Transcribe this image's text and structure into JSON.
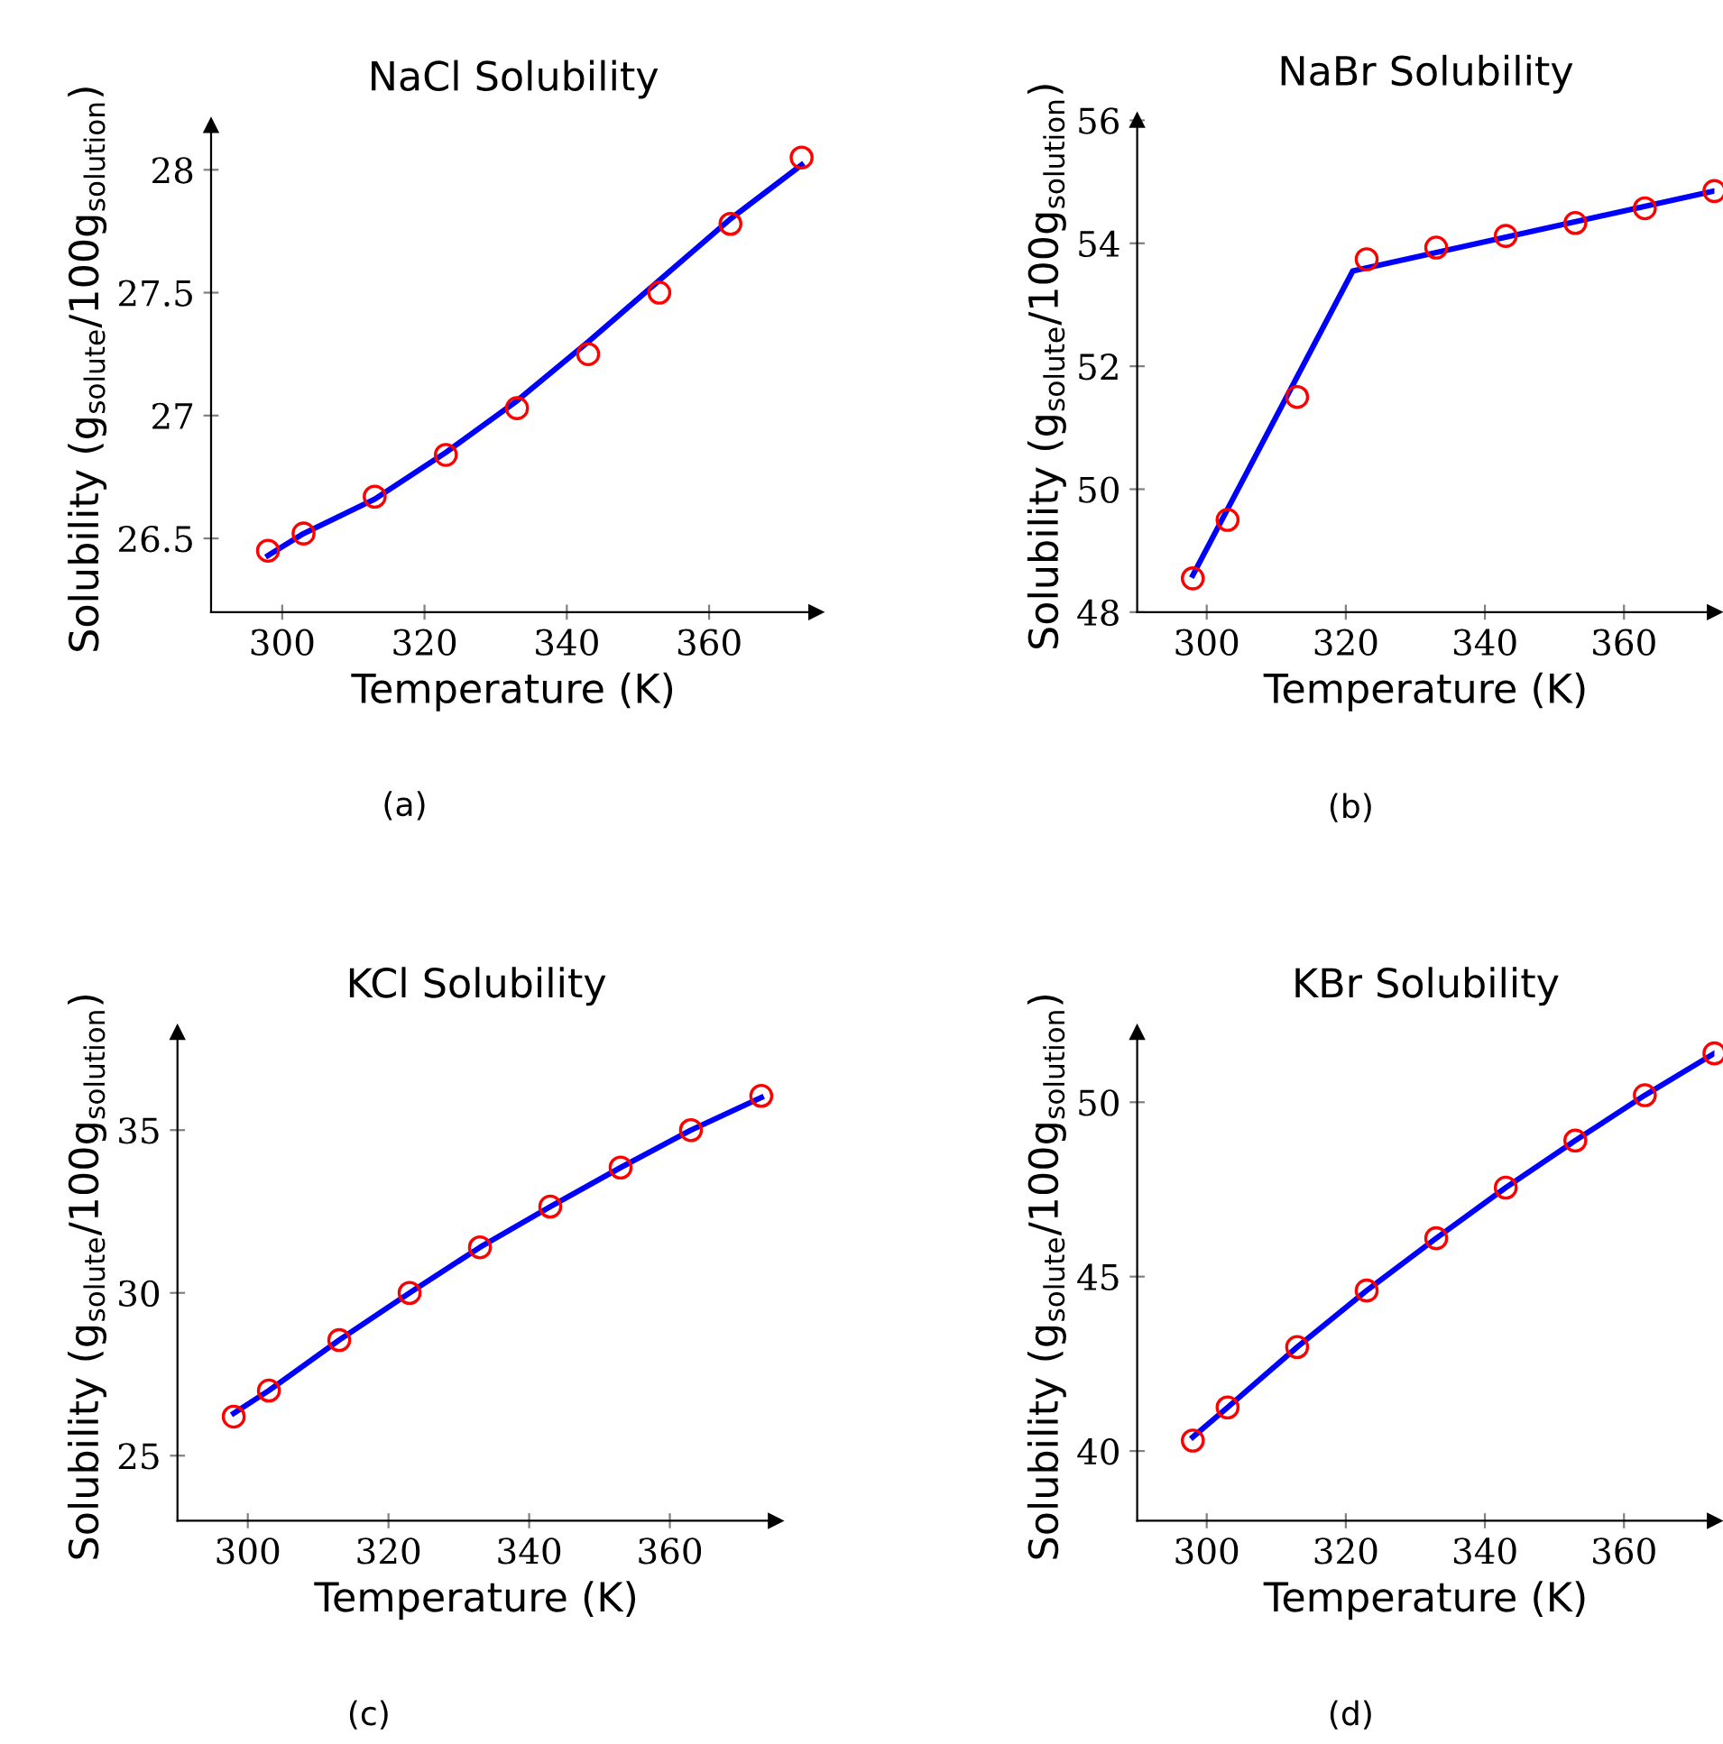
{
  "chart_data": [
    {
      "type": "line",
      "title": "NaCl Solubility",
      "xlabel": "Temperature (K)",
      "ylabel": "Solubility (g$_{solute}$/100g$_{solution}$)",
      "annotations": [
        "(a)"
      ],
      "xlim": [
        290,
        375
      ],
      "ylim": [
        26.2,
        28.18
      ],
      "xticks": [
        300,
        320,
        340,
        360
      ],
      "yticks": [
        26.5,
        27,
        27.5,
        28
      ],
      "series": [
        {
          "type": "scatter",
          "marker": "circle",
          "color": "#ff0000",
          "x": [
            298,
            303,
            313,
            323,
            333,
            343,
            353,
            363,
            373
          ],
          "values": [
            26.45,
            26.52,
            26.67,
            26.84,
            27.03,
            27.25,
            27.5,
            27.78,
            28.05
          ]
        },
        {
          "color": "#0000ff",
          "x": [
            298,
            303,
            313,
            323,
            333,
            343,
            353,
            363,
            373
          ],
          "values": [
            26.43,
            26.52,
            26.66,
            26.85,
            27.06,
            27.3,
            27.55,
            27.8,
            28.02
          ]
        }
      ]
    },
    {
      "type": "line",
      "title": "NaBr Solubility",
      "xlabel": "Temperature (K)",
      "ylabel": "Solubility (g$_{solute}$/100g$_{solution}$)",
      "annotations": [
        "(b)"
      ],
      "xlim": [
        290,
        373
      ],
      "ylim": [
        48,
        56
      ],
      "xticks": [
        300,
        320,
        340,
        360
      ],
      "yticks": [
        48,
        50,
        52,
        54,
        56
      ],
      "series": [
        {
          "type": "scatter",
          "marker": "circle",
          "color": "#ff0000",
          "x": [
            298,
            303,
            313,
            323,
            333,
            343,
            353,
            363,
            373
          ],
          "values": [
            48.55,
            49.5,
            51.5,
            53.74,
            53.93,
            54.12,
            54.33,
            54.57,
            54.85
          ]
        },
        {
          "color": "#0000ff",
          "x": [
            298,
            321,
            373
          ],
          "values": [
            48.6,
            53.55,
            54.85
          ]
        }
      ]
    },
    {
      "type": "line",
      "title": "KCl Solubility",
      "xlabel": "Temperature (K)",
      "ylabel": "Solubility (g$_{solute}$/100g$_{solution}$)",
      "annotations": [
        "(c)"
      ],
      "xlim": [
        290,
        375
      ],
      "ylim": [
        23,
        38
      ],
      "xticks": [
        300,
        320,
        340,
        360
      ],
      "yticks": [
        25,
        30,
        35
      ],
      "series": [
        {
          "type": "scatter",
          "marker": "circle",
          "color": "#ff0000",
          "x": [
            298,
            303,
            313,
            323,
            333,
            343,
            353,
            363,
            373
          ],
          "values": [
            26.2,
            27.0,
            28.55,
            30.0,
            31.4,
            32.65,
            33.85,
            35.0,
            36.05
          ]
        },
        {
          "color": "#0000ff",
          "x": [
            298,
            303,
            313,
            323,
            333,
            343,
            353,
            363,
            373
          ],
          "values": [
            26.3,
            27.0,
            28.55,
            30.0,
            31.4,
            32.65,
            33.85,
            35.0,
            36.0
          ]
        }
      ]
    },
    {
      "type": "line",
      "title": "KBr Solubility",
      "xlabel": "Temperature (K)",
      "ylabel": "Solubility (g$_{solute}$/100g$_{solution}$)",
      "annotations": [
        "(d)"
      ],
      "xlim": [
        290,
        373
      ],
      "ylim": [
        38,
        52
      ],
      "xticks": [
        300,
        320,
        340,
        360
      ],
      "yticks": [
        40,
        45,
        50
      ],
      "series": [
        {
          "type": "scatter",
          "marker": "circle",
          "color": "#ff0000",
          "x": [
            298,
            303,
            313,
            323,
            333,
            343,
            353,
            363,
            373
          ],
          "values": [
            40.3,
            41.25,
            42.98,
            44.6,
            46.1,
            47.55,
            48.9,
            50.2,
            51.4
          ]
        },
        {
          "color": "#0000ff",
          "x": [
            298,
            303,
            313,
            323,
            333,
            343,
            353,
            363,
            373
          ],
          "values": [
            40.4,
            41.25,
            42.98,
            44.6,
            46.1,
            47.55,
            48.9,
            50.2,
            51.4
          ]
        }
      ]
    }
  ]
}
